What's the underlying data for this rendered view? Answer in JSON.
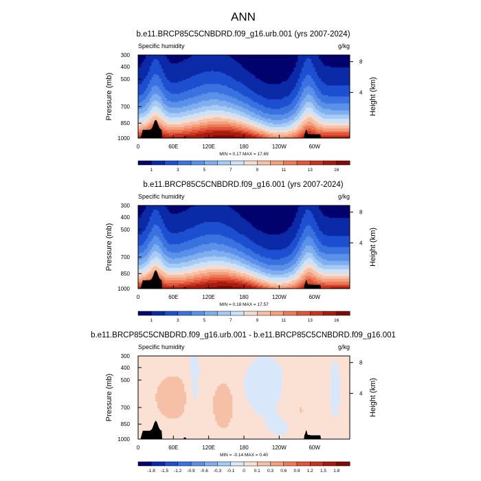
{
  "figure_title": "ANN",
  "chart_data": [
    {
      "type": "heatmap",
      "title": "b.e11.BRCP85C5CNBDRD.f09_g16.urb.001 (yrs 2007-2024)",
      "left_label": "Specific humidity",
      "right_label": "g/kg",
      "xlabel": "",
      "ylabel": "Pressure (mb)",
      "y2label": "Height (km)",
      "x_ticks": [
        "0",
        "60E",
        "120E",
        "180",
        "120W",
        "60W"
      ],
      "y_ticks": [
        "300",
        "400",
        "500",
        "700",
        "850",
        "1000"
      ],
      "y2_ticks": [
        "8",
        "4"
      ],
      "stats": "MIN =   0.17  MAX =  17.69",
      "min": 0.17,
      "max": 17.69,
      "colorbar_labels": [
        "1",
        "3",
        "5",
        "7",
        "9",
        "11",
        "13",
        "16"
      ],
      "palette": [
        "#03036e",
        "#0a2aa8",
        "#1d4fd0",
        "#3a72e0",
        "#5b91ea",
        "#7fafef",
        "#a6cbf4",
        "#cbe2f8",
        "#f3ddd2",
        "#f6c0a6",
        "#f4a07e",
        "#ee7b58",
        "#e0563a",
        "#c8341f",
        "#a81c10",
        "#7f0a06"
      ]
    },
    {
      "type": "heatmap",
      "title": "b.e11.BRCP85C5CNBDRD.f09_g16.001 (yrs 2007-2024)",
      "left_label": "Specific humidity",
      "right_label": "g/kg",
      "xlabel": "",
      "ylabel": "Pressure (mb)",
      "y2label": "Height (km)",
      "x_ticks": [
        "0",
        "60E",
        "120E",
        "180",
        "120W",
        "60W"
      ],
      "y_ticks": [
        "300",
        "400",
        "500",
        "700",
        "850",
        "1000"
      ],
      "y2_ticks": [
        "8",
        "4"
      ],
      "stats": "MIN =   0.18  MAX =  17.57",
      "min": 0.18,
      "max": 17.57,
      "colorbar_labels": [
        "1",
        "3",
        "5",
        "7",
        "9",
        "11",
        "13",
        "16"
      ],
      "palette": [
        "#03036e",
        "#0a2aa8",
        "#1d4fd0",
        "#3a72e0",
        "#5b91ea",
        "#7fafef",
        "#a6cbf4",
        "#cbe2f8",
        "#f3ddd2",
        "#f6c0a6",
        "#f4a07e",
        "#ee7b58",
        "#e0563a",
        "#c8341f",
        "#a81c10",
        "#7f0a06"
      ]
    },
    {
      "type": "heatmap",
      "title": "b.e11.BRCP85C5CNBDRD.f09_g16.urb.001 - b.e11.BRCP85C5CNBDRD.f09_g16.001",
      "left_label": "Specific humidity",
      "right_label": "g/kg",
      "xlabel": "",
      "ylabel": "Pressure (mb)",
      "y2label": "Height (km)",
      "x_ticks": [
        "0",
        "60E",
        "120E",
        "180",
        "120W",
        "60W"
      ],
      "y_ticks": [
        "300",
        "400",
        "500",
        "700",
        "850",
        "1000"
      ],
      "y2_ticks": [
        "8",
        "4"
      ],
      "stats": "MIN =  -0.14  MAX =   0.40",
      "min": -0.14,
      "max": 0.4,
      "colorbar_labels": [
        "-1.8",
        "-1.5",
        "-1.2",
        "-0.9",
        "-0.6",
        "-0.3",
        "-0.1",
        "0",
        "0.1",
        "0.3",
        "0.6",
        "0.9",
        "1.2",
        "1.5",
        "1.8"
      ],
      "palette": [
        "#03036e",
        "#0a2aa8",
        "#1d4fd0",
        "#3a72e0",
        "#5b91ea",
        "#7fafef",
        "#a6cbf4",
        "#d8e8fa",
        "#fbe1d4",
        "#f6c0a6",
        "#f4a07e",
        "#ee7b58",
        "#e0563a",
        "#c8341f",
        "#a81c10",
        "#7f0a06"
      ]
    }
  ]
}
